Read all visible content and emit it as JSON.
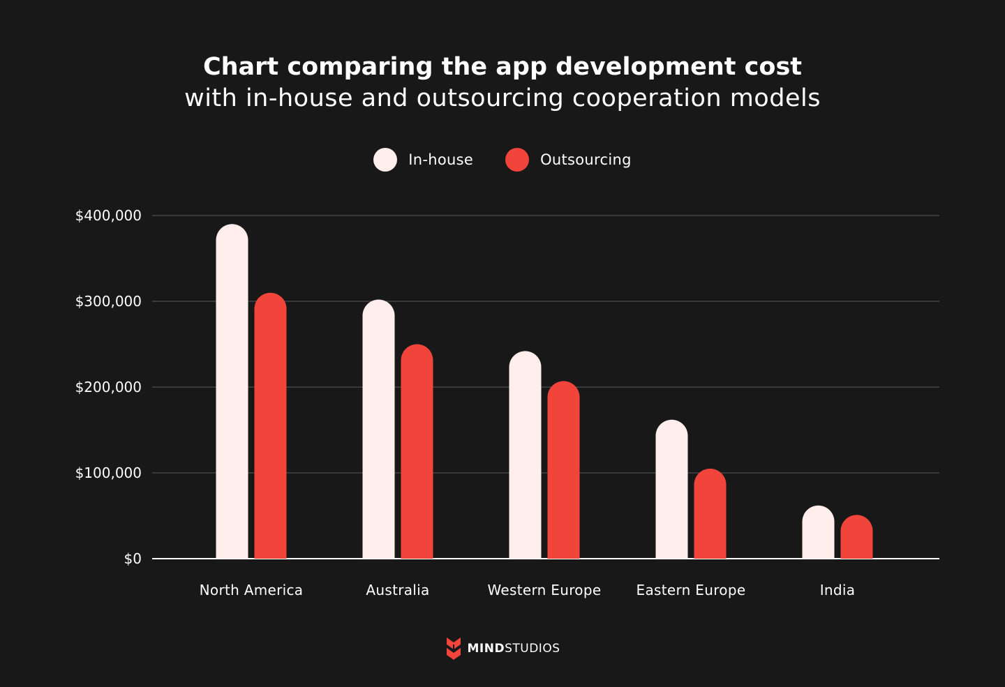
{
  "chart_data": {
    "type": "bar",
    "title": "Chart comparing the app development cost",
    "subtitle": "with in-house and outsourcing cooperation models",
    "categories": [
      "North America",
      "Australia",
      "Western Europe",
      "Eastern Europe",
      "India"
    ],
    "series": [
      {
        "name": "In-house",
        "values": [
          390000,
          302000,
          242000,
          162000,
          62000
        ],
        "color": "#FFEEEC"
      },
      {
        "name": "Outsourcing",
        "values": [
          310000,
          250000,
          207000,
          105000,
          51000
        ],
        "color": "#F1453B"
      }
    ],
    "yticks": [
      "$0",
      "$100,000",
      "$200,000",
      "$300,000",
      "$400,000"
    ],
    "ylim": [
      0,
      400000
    ],
    "grid": true,
    "legend": "top-center"
  },
  "brand": {
    "name_bold": "MIND",
    "name_regular": "STUDIOS",
    "logo_icon": "mind-studios-logo-icon",
    "accent": "#F1453B"
  }
}
